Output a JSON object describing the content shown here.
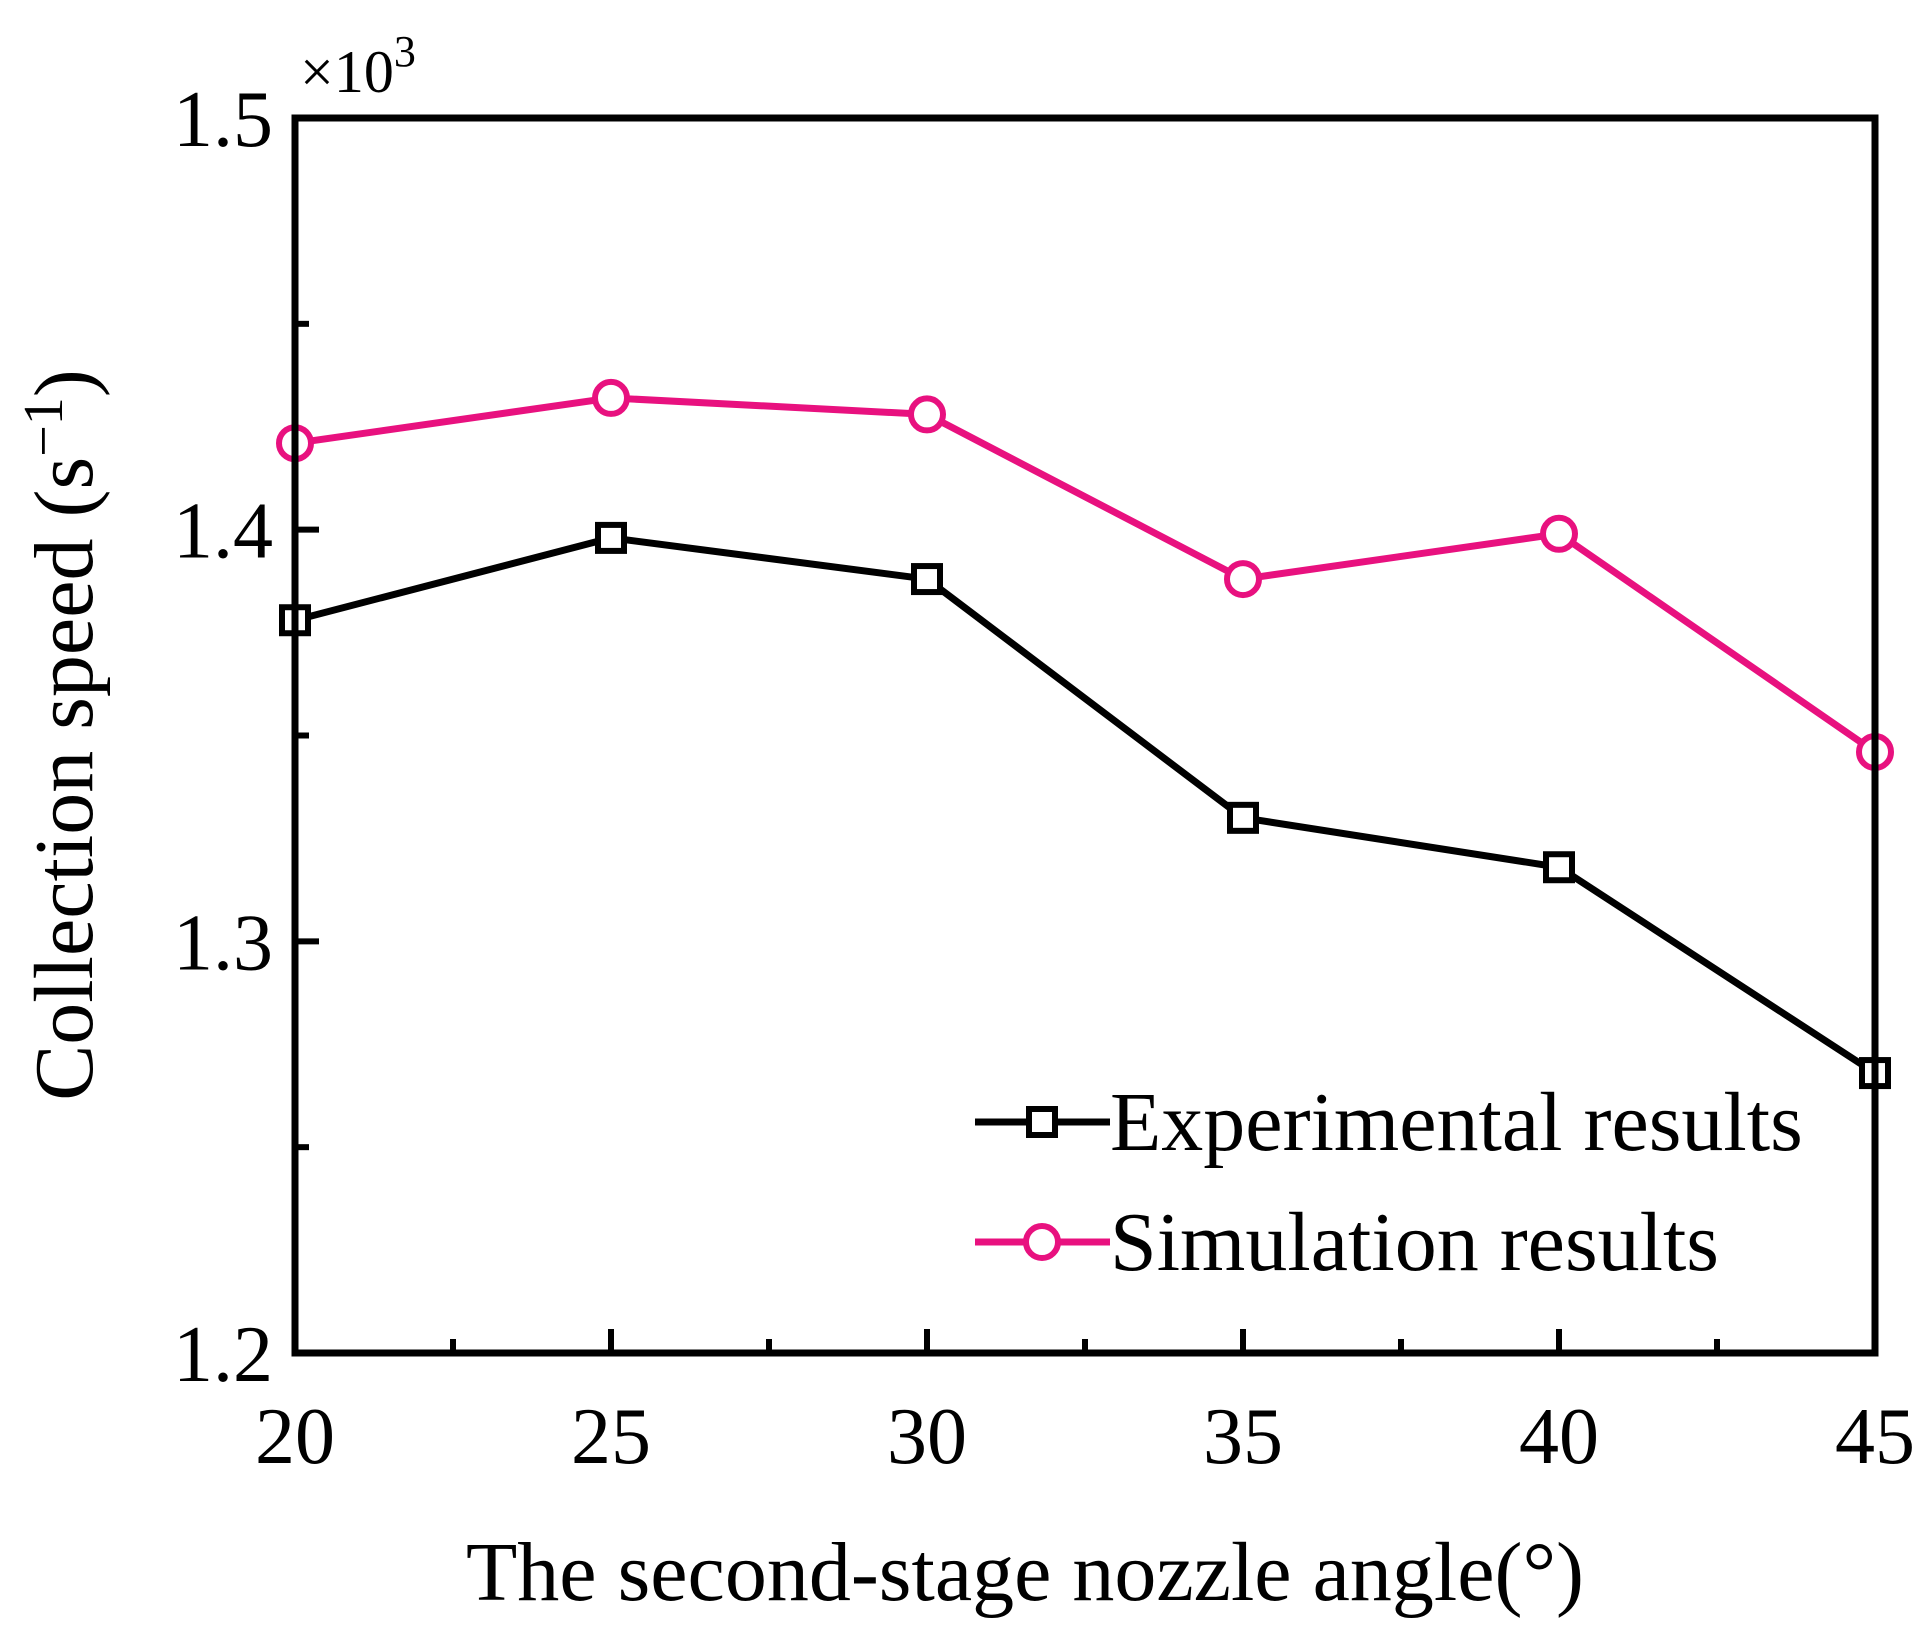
{
  "chart_data": {
    "type": "line",
    "xlabel": "The second-stage nozzle angle(°)",
    "ylabel": "Collection speed (s",
    "ylabel_sup": "−1",
    "ylabel_close": ")",
    "y_multiplier": "×10",
    "y_multiplier_sup": "3",
    "x": [
      20,
      25,
      30,
      35,
      40,
      45
    ],
    "xlim": [
      20,
      45
    ],
    "ylim": [
      1.2,
      1.5
    ],
    "x_ticks": [
      "20",
      "25",
      "30",
      "35",
      "40",
      "45"
    ],
    "y_ticks": [
      "1.2",
      "1.3",
      "1.4",
      "1.5"
    ],
    "legend_position": "bottom-right",
    "series": [
      {
        "name": "Experimental results",
        "marker": "square",
        "color": "#000000",
        "values": [
          1.378,
          1.398,
          1.388,
          1.33,
          1.318,
          1.268
        ]
      },
      {
        "name": "Simulation results",
        "marker": "circle",
        "color": "#e8117f",
        "values": [
          1.421,
          1.432,
          1.428,
          1.388,
          1.399,
          1.346
        ]
      }
    ]
  }
}
